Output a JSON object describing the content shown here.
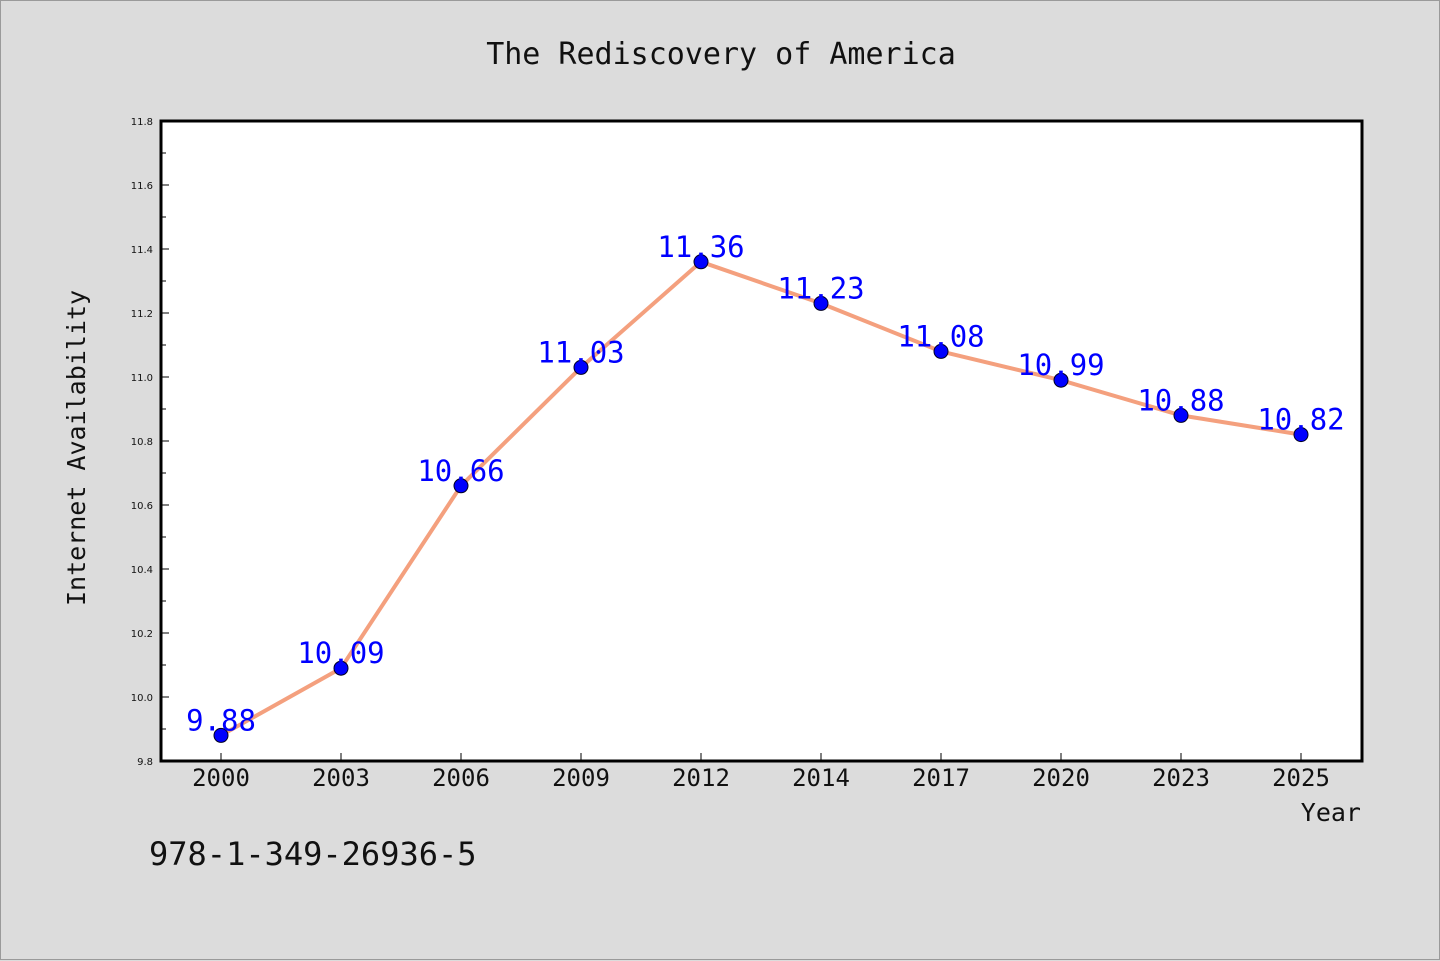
{
  "chart_data": {
    "type": "line",
    "title": "The Rediscovery of America",
    "xlabel": "Year",
    "ylabel": "Internet Availability",
    "categories": [
      "2000",
      "2003",
      "2006",
      "2009",
      "2012",
      "2014",
      "2017",
      "2020",
      "2023",
      "2025"
    ],
    "series": [
      {
        "values": [
          9.88,
          10.09,
          10.66,
          11.03,
          11.36,
          11.23,
          11.08,
          10.99,
          10.88,
          10.82
        ],
        "line_color": "#f4a07e",
        "marker_color": "#0000ff"
      }
    ],
    "data_labels": [
      "9.88",
      "10.09",
      "10.66",
      "11.03",
      "11.36",
      "11.23",
      "11.08",
      "10.99",
      "10.88",
      "10.82"
    ],
    "y_ticks": [
      "9.8",
      "10.0",
      "10.2",
      "10.4",
      "10.6",
      "10.8",
      "11.0",
      "11.2",
      "11.4",
      "11.6",
      "11.8"
    ],
    "ylim": [
      9.8,
      11.8
    ],
    "grid": false,
    "legend": "none"
  },
  "footnote": "978-1-349-26936-5",
  "colors": {
    "background": "#dcdcdc",
    "plot_background": "#ffffff",
    "line": "#f4a07e",
    "marker": "#0000ff",
    "data_label": "#0000ff"
  }
}
